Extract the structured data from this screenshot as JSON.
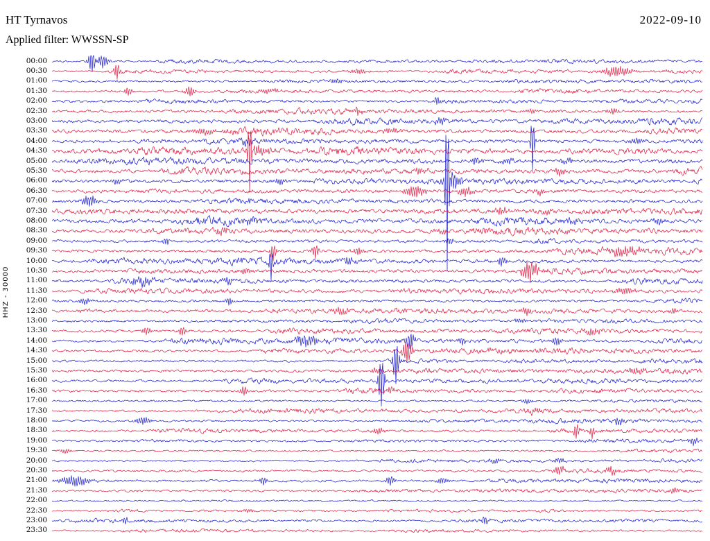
{
  "header": {
    "station": "HT Tyrnavos",
    "date": "2022-09-10",
    "filter_line": "Applied filter: WWSSN-SP"
  },
  "axis": {
    "left_label": "HHZ - 30000"
  },
  "chart_data": {
    "type": "line",
    "subtype": "seismogram-helicorder",
    "station": "HT Tyrnavos",
    "channel": "HHZ",
    "gain_scale": 30000,
    "date": "2022-09-10",
    "filter": "WWSSN-SP",
    "minutes_per_line": 30,
    "time_range": [
      "00:00",
      "23:30"
    ],
    "ylabel": "HHZ - 30000",
    "grid": false,
    "legend": false,
    "colors": {
      "blue": "#1414cc",
      "red": "#dc143c"
    },
    "rows": [
      {
        "t": "00:00",
        "c": "b",
        "n": 1.2
      },
      {
        "t": "00:30",
        "c": "r",
        "n": 1.2
      },
      {
        "t": "01:00",
        "c": "b",
        "n": 1.2
      },
      {
        "t": "01:30",
        "c": "r",
        "n": 1.5
      },
      {
        "t": "02:00",
        "c": "b",
        "n": 1.2
      },
      {
        "t": "02:30",
        "c": "r",
        "n": 1.5
      },
      {
        "t": "03:00",
        "c": "b",
        "n": 2.0
      },
      {
        "t": "03:30",
        "c": "r",
        "n": 2.2
      },
      {
        "t": "04:00",
        "c": "b",
        "n": 2.0
      },
      {
        "t": "04:30",
        "c": "r",
        "n": 2.2
      },
      {
        "t": "05:00",
        "c": "b",
        "n": 2.2
      },
      {
        "t": "05:30",
        "c": "r",
        "n": 2.2
      },
      {
        "t": "06:00",
        "c": "b",
        "n": 2.0
      },
      {
        "t": "06:30",
        "c": "r",
        "n": 2.2
      },
      {
        "t": "07:00",
        "c": "b",
        "n": 2.0
      },
      {
        "t": "07:30",
        "c": "r",
        "n": 2.2
      },
      {
        "t": "08:00",
        "c": "b",
        "n": 2.4
      },
      {
        "t": "08:30",
        "c": "r",
        "n": 2.2
      },
      {
        "t": "09:00",
        "c": "b",
        "n": 1.8
      },
      {
        "t": "09:30",
        "c": "r",
        "n": 1.8
      },
      {
        "t": "10:00",
        "c": "b",
        "n": 1.8
      },
      {
        "t": "10:30",
        "c": "r",
        "n": 1.8
      },
      {
        "t": "11:00",
        "c": "b",
        "n": 1.6
      },
      {
        "t": "11:30",
        "c": "r",
        "n": 1.5
      },
      {
        "t": "12:00",
        "c": "b",
        "n": 1.5
      },
      {
        "t": "12:30",
        "c": "r",
        "n": 1.6
      },
      {
        "t": "13:00",
        "c": "b",
        "n": 1.4
      },
      {
        "t": "13:30",
        "c": "r",
        "n": 1.6
      },
      {
        "t": "14:00",
        "c": "b",
        "n": 1.5
      },
      {
        "t": "14:30",
        "c": "r",
        "n": 1.5
      },
      {
        "t": "15:00",
        "c": "b",
        "n": 1.4
      },
      {
        "t": "15:30",
        "c": "r",
        "n": 1.6
      },
      {
        "t": "16:00",
        "c": "b",
        "n": 1.4
      },
      {
        "t": "16:30",
        "c": "r",
        "n": 1.5
      },
      {
        "t": "17:00",
        "c": "b",
        "n": 1.2
      },
      {
        "t": "17:30",
        "c": "r",
        "n": 1.2
      },
      {
        "t": "18:00",
        "c": "b",
        "n": 1.2
      },
      {
        "t": "18:30",
        "c": "r",
        "n": 1.3
      },
      {
        "t": "19:00",
        "c": "b",
        "n": 1.1
      },
      {
        "t": "19:30",
        "c": "r",
        "n": 1.1
      },
      {
        "t": "20:00",
        "c": "b",
        "n": 1.1
      },
      {
        "t": "20:30",
        "c": "r",
        "n": 1.2
      },
      {
        "t": "21:00",
        "c": "b",
        "n": 1.3
      },
      {
        "t": "21:30",
        "c": "r",
        "n": 1.1
      },
      {
        "t": "22:00",
        "c": "b",
        "n": 1.0
      },
      {
        "t": "22:30",
        "c": "r",
        "n": 1.0
      },
      {
        "t": "23:00",
        "c": "b",
        "n": 1.1
      },
      {
        "t": "23:30",
        "c": "r",
        "n": 1.0
      }
    ],
    "events": [
      {
        "row": 0,
        "x": 0.062,
        "amp": 16,
        "w": 4
      },
      {
        "row": 0,
        "x": 0.078,
        "amp": 9,
        "w": 6
      },
      {
        "row": 1,
        "x": 0.1,
        "amp": 11,
        "w": 3
      },
      {
        "row": 1,
        "x": 0.47,
        "amp": 3,
        "w": 10
      },
      {
        "row": 1,
        "x": 0.868,
        "amp": 7,
        "w": 14
      },
      {
        "row": 2,
        "x": 0.437,
        "amp": 4,
        "w": 6
      },
      {
        "row": 3,
        "x": 0.117,
        "amp": 6,
        "w": 4
      },
      {
        "row": 3,
        "x": 0.212,
        "amp": 7,
        "w": 5
      },
      {
        "row": 3,
        "x": 0.33,
        "amp": 3.5,
        "w": 10
      },
      {
        "row": 4,
        "x": 0.591,
        "amp": 6,
        "w": 3
      },
      {
        "row": 5,
        "x": 0.47,
        "amp": 5,
        "w": 4
      },
      {
        "row": 5,
        "x": 0.737,
        "amp": 4,
        "w": 4
      },
      {
        "row": 5,
        "x": 0.862,
        "amp": 4,
        "w": 6
      },
      {
        "row": 6,
        "x": 0.6,
        "amp": 3.5,
        "w": 8
      },
      {
        "row": 7,
        "x": 0.235,
        "amp": 4,
        "w": 12
      },
      {
        "row": 7,
        "x": 0.52,
        "amp": 3.5,
        "w": 8
      },
      {
        "row": 8,
        "x": 0.738,
        "amp": 42,
        "w": 2
      },
      {
        "row": 8,
        "x": 0.3,
        "amp": 5,
        "w": 6
      },
      {
        "row": 8,
        "x": 0.9,
        "amp": 4,
        "w": 8
      },
      {
        "row": 9,
        "x": 0.303,
        "amp": 58,
        "w": 2
      },
      {
        "row": 9,
        "x": 0.32,
        "amp": 6,
        "w": 10
      },
      {
        "row": 10,
        "x": 0.652,
        "amp": 5,
        "w": 6
      },
      {
        "row": 10,
        "x": 0.7,
        "amp": 4,
        "w": 6
      },
      {
        "row": 10,
        "x": 0.79,
        "amp": 4,
        "w": 6
      },
      {
        "row": 11,
        "x": 0.565,
        "amp": 4,
        "w": 8
      },
      {
        "row": 11,
        "x": 0.78,
        "amp": 5,
        "w": 6
      },
      {
        "row": 12,
        "x": 0.607,
        "amp": 135,
        "w": 2
      },
      {
        "row": 12,
        "x": 0.617,
        "amp": 12,
        "w": 8
      },
      {
        "row": 12,
        "x": 0.1,
        "amp": 4,
        "w": 6
      },
      {
        "row": 12,
        "x": 0.35,
        "amp": 4,
        "w": 5
      },
      {
        "row": 13,
        "x": 0.557,
        "amp": 8,
        "w": 10
      },
      {
        "row": 13,
        "x": 0.635,
        "amp": 6,
        "w": 8
      },
      {
        "row": 13,
        "x": 0.75,
        "amp": 4,
        "w": 6
      },
      {
        "row": 14,
        "x": 0.058,
        "amp": 8,
        "w": 8
      },
      {
        "row": 14,
        "x": 0.3,
        "amp": 3,
        "w": 6
      },
      {
        "row": 15,
        "x": 0.69,
        "amp": 5,
        "w": 6
      },
      {
        "row": 15,
        "x": 0.76,
        "amp": 4,
        "w": 6
      },
      {
        "row": 16,
        "x": 0.3,
        "amp": 4,
        "w": 10
      },
      {
        "row": 16,
        "x": 0.8,
        "amp": 4,
        "w": 8
      },
      {
        "row": 16,
        "x": 0.93,
        "amp": 4,
        "w": 6
      },
      {
        "row": 17,
        "x": 0.26,
        "amp": 4,
        "w": 8
      },
      {
        "row": 17,
        "x": 0.6,
        "amp": 3,
        "w": 8
      },
      {
        "row": 18,
        "x": 0.175,
        "amp": 6,
        "w": 3
      },
      {
        "row": 18,
        "x": 0.61,
        "amp": 4,
        "w": 5
      },
      {
        "row": 19,
        "x": 0.34,
        "amp": 13,
        "w": 3
      },
      {
        "row": 19,
        "x": 0.405,
        "amp": 11,
        "w": 3
      },
      {
        "row": 19,
        "x": 0.47,
        "amp": 5,
        "w": 6
      },
      {
        "row": 19,
        "x": 0.875,
        "amp": 6,
        "w": 16
      },
      {
        "row": 20,
        "x": 0.337,
        "amp": 24,
        "w": 2
      },
      {
        "row": 20,
        "x": 0.455,
        "amp": 5,
        "w": 5
      },
      {
        "row": 20,
        "x": 0.69,
        "amp": 7,
        "w": 4
      },
      {
        "row": 21,
        "x": 0.735,
        "amp": 13,
        "w": 8
      },
      {
        "row": 21,
        "x": 0.3,
        "amp": 4,
        "w": 6
      },
      {
        "row": 22,
        "x": 0.138,
        "amp": 6,
        "w": 10
      },
      {
        "row": 22,
        "x": 0.27,
        "amp": 4,
        "w": 5
      },
      {
        "row": 23,
        "x": 0.88,
        "amp": 4,
        "w": 10
      },
      {
        "row": 24,
        "x": 0.272,
        "amp": 6,
        "w": 3
      },
      {
        "row": 24,
        "x": 0.05,
        "amp": 4,
        "w": 8
      },
      {
        "row": 25,
        "x": 0.445,
        "amp": 4,
        "w": 8
      },
      {
        "row": 25,
        "x": 0.73,
        "amp": 6,
        "w": 5
      },
      {
        "row": 25,
        "x": 0.955,
        "amp": 5,
        "w": 4
      },
      {
        "row": 26,
        "x": 0.72,
        "amp": 3,
        "w": 6
      },
      {
        "row": 27,
        "x": 0.145,
        "amp": 6,
        "w": 4
      },
      {
        "row": 27,
        "x": 0.2,
        "amp": 6,
        "w": 4
      },
      {
        "row": 27,
        "x": 0.83,
        "amp": 4,
        "w": 8
      },
      {
        "row": 28,
        "x": 0.39,
        "amp": 7,
        "w": 12
      },
      {
        "row": 28,
        "x": 0.55,
        "amp": 11,
        "w": 5
      },
      {
        "row": 28,
        "x": 0.63,
        "amp": 5,
        "w": 4
      },
      {
        "row": 28,
        "x": 0.775,
        "amp": 5,
        "w": 6
      },
      {
        "row": 29,
        "x": 0.545,
        "amp": 16,
        "w": 5
      },
      {
        "row": 30,
        "x": 0.528,
        "amp": 32,
        "w": 3
      },
      {
        "row": 31,
        "x": 0.5,
        "amp": 4,
        "w": 8
      },
      {
        "row": 31,
        "x": 0.9,
        "amp": 4,
        "w": 8
      },
      {
        "row": 32,
        "x": 0.506,
        "amp": 38,
        "w": 3
      },
      {
        "row": 33,
        "x": 0.295,
        "amp": 7,
        "w": 4
      },
      {
        "row": 33,
        "x": 0.52,
        "amp": 4,
        "w": 6
      },
      {
        "row": 34,
        "x": 0.73,
        "amp": 3,
        "w": 6
      },
      {
        "row": 35,
        "x": 0.74,
        "amp": 4,
        "w": 5
      },
      {
        "row": 36,
        "x": 0.14,
        "amp": 5,
        "w": 8
      },
      {
        "row": 36,
        "x": 0.87,
        "amp": 5,
        "w": 5
      },
      {
        "row": 37,
        "x": 0.805,
        "amp": 11,
        "w": 3
      },
      {
        "row": 37,
        "x": 0.83,
        "amp": 9,
        "w": 3
      },
      {
        "row": 37,
        "x": 0.5,
        "amp": 4,
        "w": 6
      },
      {
        "row": 38,
        "x": 0.985,
        "amp": 6,
        "w": 4
      },
      {
        "row": 39,
        "x": 0.02,
        "amp": 3,
        "w": 6
      },
      {
        "row": 40,
        "x": 0.68,
        "amp": 4,
        "w": 5
      },
      {
        "row": 40,
        "x": 0.78,
        "amp": 4,
        "w": 5
      },
      {
        "row": 41,
        "x": 0.78,
        "amp": 5,
        "w": 6
      },
      {
        "row": 41,
        "x": 0.86,
        "amp": 5,
        "w": 6
      },
      {
        "row": 42,
        "x": 0.035,
        "amp": 7,
        "w": 14
      },
      {
        "row": 42,
        "x": 0.325,
        "amp": 6,
        "w": 4
      },
      {
        "row": 42,
        "x": 0.52,
        "amp": 7,
        "w": 4
      },
      {
        "row": 42,
        "x": 0.6,
        "amp": 4,
        "w": 6
      },
      {
        "row": 43,
        "x": 0.955,
        "amp": 5,
        "w": 4
      },
      {
        "row": 45,
        "x": 0.3,
        "amp": 2.5,
        "w": 6
      },
      {
        "row": 46,
        "x": 0.113,
        "amp": 6,
        "w": 3
      },
      {
        "row": 46,
        "x": 0.665,
        "amp": 7,
        "w": 3
      }
    ]
  }
}
